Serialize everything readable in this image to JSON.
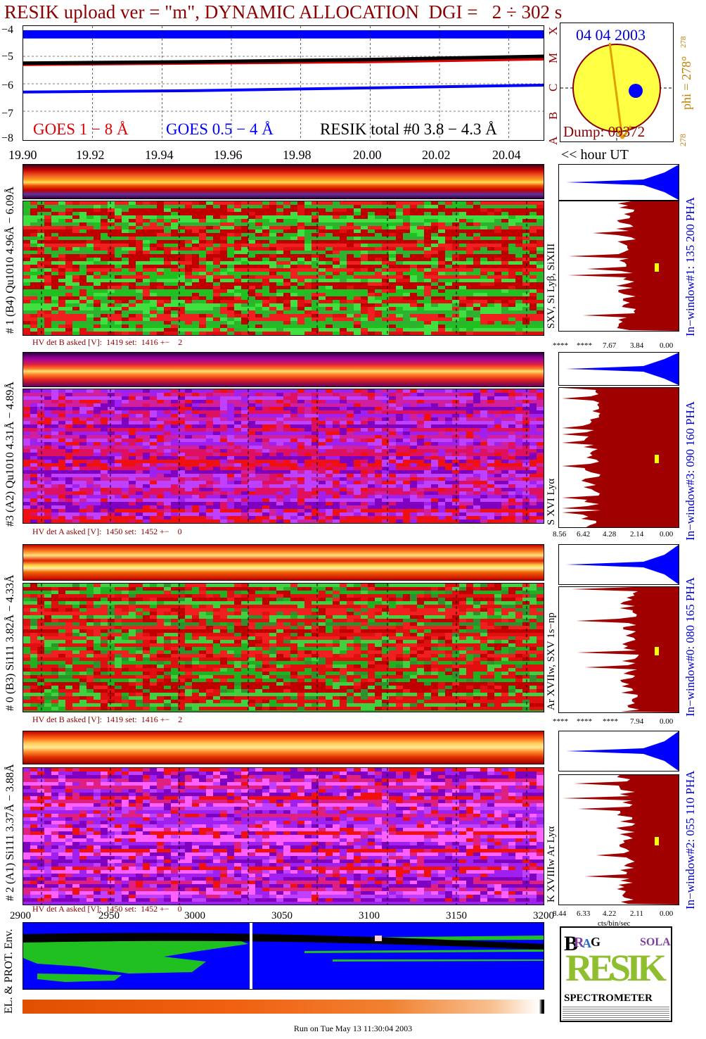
{
  "title": "RESIK upload ver = \"m\", DYNAMIC ALLOCATION  DGI =   2 ÷ 302 s",
  "top_panel": {
    "y_ticks": [
      "−4",
      "−5",
      "−6",
      "−7",
      "−8"
    ],
    "legend_goes_long": "GOES 1 − 8 Å",
    "legend_goes_short": "GOES 0.5 − 4 Å",
    "legend_resik": "RESIK total #0  3.8 − 4.3 Å",
    "class_letters": [
      "X",
      "M",
      "C",
      "B",
      "A"
    ],
    "colors": {
      "goes_long": "#e00000",
      "goes_short": "#0000ff",
      "resik": "#000000"
    }
  },
  "sun_panel": {
    "date": "04 04 2003",
    "phi_label": "phi = 278°",
    "phi_sup": "278",
    "phi_bottom": "278",
    "dump": "Dump: 09372"
  },
  "time_axis": {
    "ticks": [
      "19.90",
      "19.92",
      "19.94",
      "19.96",
      "19.98",
      "20.00",
      "20.02",
      "20.04"
    ],
    "unit_label": "<< hour UT"
  },
  "channels": [
    {
      "left_label": "# 1 (B4) Qu1010 4.96Å − 6.09Å",
      "spectrum_label": "SXV, Si Lyβ, SiXIII",
      "window_label": "In−window#1:  135 200 PHA",
      "hv_text": "HV det B asked [V]:  1419 set:  1416 +−    2",
      "x_ticks": [
        "****",
        "****",
        "7.67",
        "3.84",
        "0.00"
      ]
    },
    {
      "left_label": "#3 (A2) Qu1010  4.31Å − 4.89Å",
      "spectrum_label": "S XVI Lyα",
      "window_label": "In−window#3:  090 160 PHA",
      "hv_text": "HV det A asked [V]:  1450 set:  1452 +−    0",
      "x_ticks": [
        "8.56",
        "6.42",
        "4.28",
        "2.14",
        "0.00"
      ]
    },
    {
      "left_label": "# 0 (B3) Si111  3.82Å − 4.33Å",
      "spectrum_label": "Ar XVIIw,  SXV 1s−np",
      "window_label": "In−window#0:  080 165 PHA",
      "hv_text": "HV det B asked [V]:  1419 set:  1416 +−    2",
      "x_ticks": [
        "****",
        "****",
        "****",
        "7.94",
        "0.00"
      ]
    },
    {
      "left_label": "# 2 (A1) Si111  3.37Å − 3.88Å",
      "spectrum_label": "K XVIIIw  Ar Lyα",
      "window_label": "In−window#2:  055 110 PHA",
      "hv_text": "HV det A asked [V]:  1450 set:  1452 +−    0",
      "x_ticks": [
        "8.44",
        "6.33",
        "4.22",
        "2.11",
        "0.00"
      ]
    }
  ],
  "cts_label": "cts/bin/sec",
  "env_panel": {
    "x_ticks": [
      "2900",
      "2950",
      "3000",
      "3050",
      "3100",
      "3150",
      "3200"
    ],
    "label": "EL. & PROT. Env."
  },
  "logo": {
    "b": "B",
    "r": "R",
    "a": "A",
    "g": "G",
    "resik": "RESIK",
    "solar": "SOLAR",
    "spectrometer": "SPECTROMETER"
  },
  "footer": "Run on Tue May 13 11:30:04 2003",
  "chart_data": [
    {
      "type": "line",
      "title": "",
      "series": [
        {
          "name": "GOES 1 − 8 Å",
          "color": "#e00000",
          "x": [
            19.9,
            19.95,
            20.0,
            20.05
          ],
          "values": [
            -5.3,
            -5.25,
            -5.2,
            -5.1
          ]
        },
        {
          "name": "GOES 0.5 − 4 Å",
          "color": "#0000ff",
          "x": [
            19.9,
            19.95,
            20.0,
            20.05
          ],
          "values": [
            -6.3,
            -6.25,
            -6.15,
            -6.05
          ]
        },
        {
          "name": "RESIK total #0  3.8 − 4.3 Å",
          "color": "#000000",
          "x": [
            19.9,
            19.95,
            20.0,
            20.05
          ],
          "values": [
            -5.25,
            -5.2,
            -5.12,
            -5.0
          ]
        }
      ],
      "ylim": [
        -8,
        -4
      ],
      "xlim": [
        19.9,
        20.05
      ],
      "grid": true
    },
    {
      "type": "heatmap",
      "title": "",
      "xlabel": "<< hour UT",
      "xlim": [
        19.9,
        20.05
      ],
      "panels": [
        "# 1 (B4) Qu1010 4.96Å − 6.09Å",
        "#3 (A2) Qu1010  4.31Å − 4.89Å",
        "# 0 (B3) Si111  3.82Å − 4.33Å",
        "# 2 (A1) Si111  3.37Å − 3.88Å"
      ]
    },
    {
      "type": "heatmap",
      "title": "",
      "xlim": [
        2900,
        3200
      ]
    }
  ]
}
